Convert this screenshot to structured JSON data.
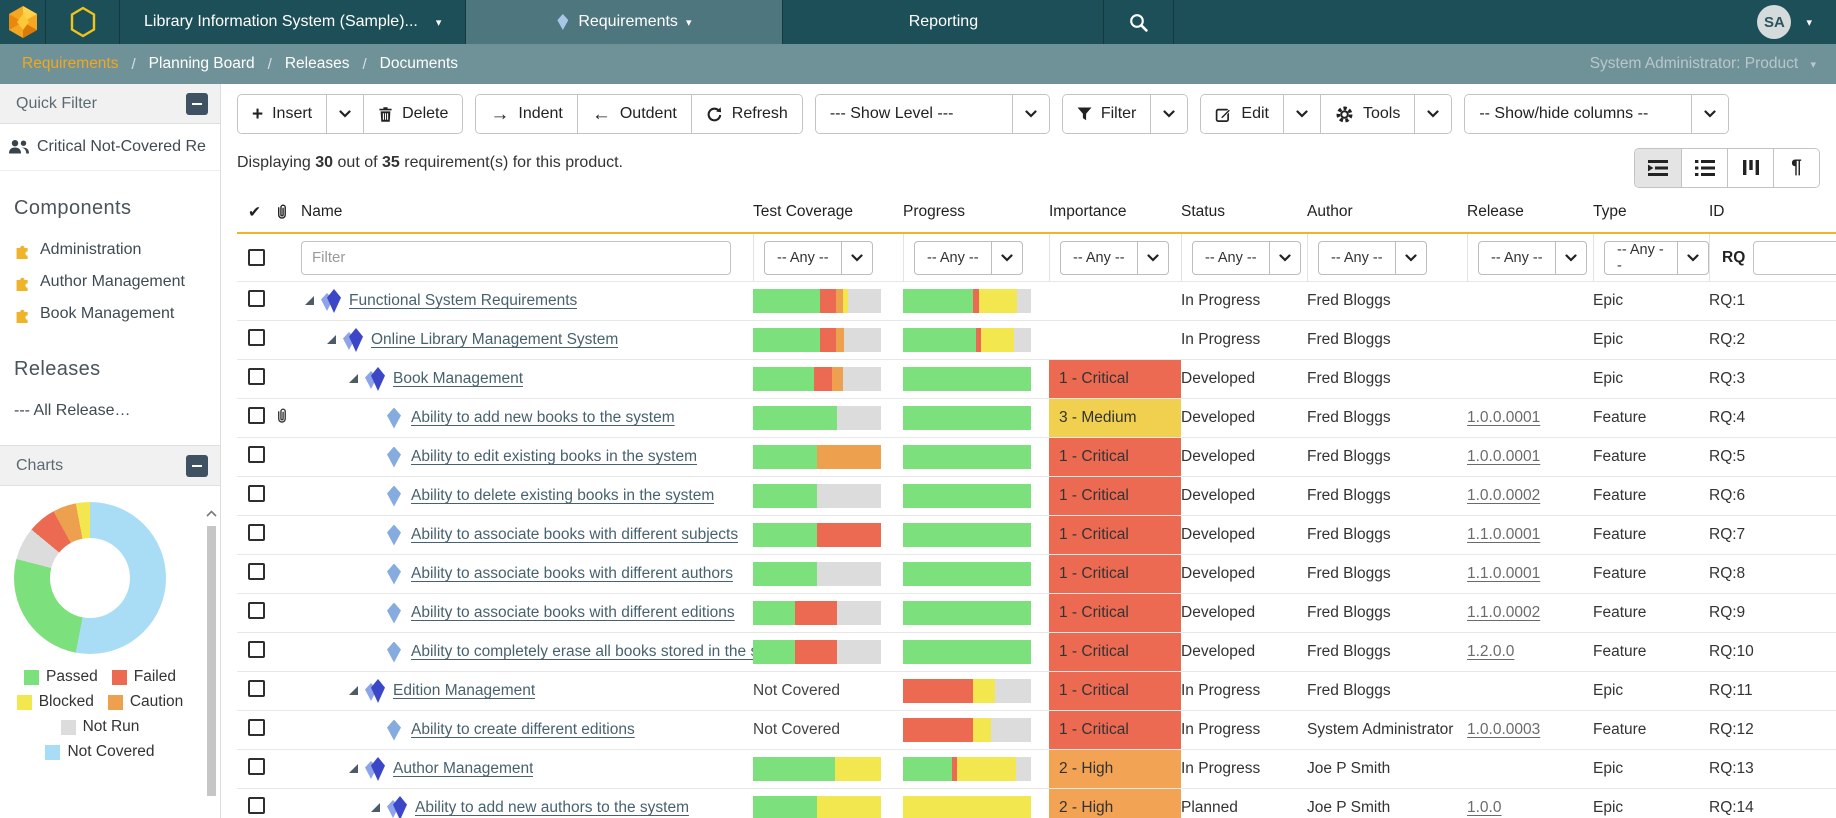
{
  "navbar": {
    "product_menu": "Library Information System (Sample)...",
    "tabs": {
      "requirements": "Requirements",
      "reporting": "Reporting"
    },
    "avatar": "SA"
  },
  "breadcrumb": {
    "items": [
      {
        "label": "Requirements",
        "active": true
      },
      {
        "label": "Planning Board",
        "active": false
      },
      {
        "label": "Releases",
        "active": false
      },
      {
        "label": "Documents",
        "active": false
      }
    ],
    "right": "System Administrator: Product"
  },
  "sidebar": {
    "quick_filter": {
      "title": "Quick Filter",
      "items": [
        "Critical Not-Covered Re"
      ]
    },
    "components": {
      "title": "Components",
      "items": [
        "Administration",
        "Author Management",
        "Book Management"
      ]
    },
    "releases": {
      "title": "Releases",
      "items": [
        "--- All Release…"
      ]
    },
    "charts": {
      "title": "Charts"
    }
  },
  "toolbar": {
    "insert": "Insert",
    "delete": "Delete",
    "indent": "Indent",
    "outdent": "Outdent",
    "refresh": "Refresh",
    "show_level": "--- Show Level ---",
    "filter": "Filter",
    "edit": "Edit",
    "tools": "Tools",
    "columns": "-- Show/hide columns --"
  },
  "summary": {
    "p1": "Displaying",
    "count": "30",
    "p2": "out of",
    "total": "35",
    "p3": "requirement(s) for this product."
  },
  "table": {
    "headers": {
      "name": "Name",
      "coverage": "Test Coverage",
      "progress": "Progress",
      "importance": "Importance",
      "status": "Status",
      "author": "Author",
      "release": "Release",
      "type": "Type",
      "id": "ID"
    },
    "filter": {
      "placeholder": "Filter",
      "any": "-- Any --",
      "id_prefix": "RQ"
    },
    "rows": [
      {
        "indent": 0,
        "expander": true,
        "icon": "epic",
        "attach": false,
        "name": "Functional System Requirements",
        "coverage": [
          [
            "p",
            52
          ],
          [
            "f",
            13
          ],
          [
            "c",
            5
          ],
          [
            "b",
            4
          ],
          [
            "n",
            26
          ]
        ],
        "progress": [
          [
            "p",
            55
          ],
          [
            "f",
            4
          ],
          [
            "b",
            30
          ],
          [
            "n",
            11
          ]
        ],
        "importance": null,
        "status": "In Progress",
        "author": "Fred Bloggs",
        "release": "",
        "type": "Epic",
        "id": "RQ:1"
      },
      {
        "indent": 1,
        "expander": true,
        "icon": "epic",
        "attach": false,
        "name": "Online Library Management System",
        "coverage": [
          [
            "p",
            52
          ],
          [
            "f",
            13
          ],
          [
            "c",
            6
          ],
          [
            "n",
            29
          ]
        ],
        "progress": [
          [
            "p",
            57
          ],
          [
            "f",
            4
          ],
          [
            "b",
            26
          ],
          [
            "n",
            13
          ]
        ],
        "importance": null,
        "status": "In Progress",
        "author": "Fred Bloggs",
        "release": "",
        "type": "Epic",
        "id": "RQ:2"
      },
      {
        "indent": 2,
        "expander": true,
        "icon": "epic",
        "attach": false,
        "name": "Book Management",
        "coverage": [
          [
            "p",
            48
          ],
          [
            "f",
            14
          ],
          [
            "c",
            8
          ],
          [
            "n",
            30
          ]
        ],
        "progress": [
          [
            "p",
            100
          ]
        ],
        "importance": {
          "label": "1 - Critical",
          "level": "critical"
        },
        "status": "Developed",
        "author": "Fred Bloggs",
        "release": "",
        "type": "Epic",
        "id": "RQ:3"
      },
      {
        "indent": 3,
        "expander": false,
        "icon": "feature",
        "attach": true,
        "name": "Ability to add new books to the system",
        "coverage": [
          [
            "p",
            66
          ],
          [
            "n",
            34
          ]
        ],
        "progress": [
          [
            "p",
            100
          ]
        ],
        "importance": {
          "label": "3 - Medium",
          "level": "medium"
        },
        "status": "Developed",
        "author": "Fred Bloggs",
        "release": "1.0.0.0001",
        "type": "Feature",
        "id": "RQ:4"
      },
      {
        "indent": 3,
        "expander": false,
        "icon": "feature",
        "attach": false,
        "name": "Ability to edit existing books in the system",
        "coverage": [
          [
            "p",
            50
          ],
          [
            "c",
            50
          ]
        ],
        "progress": [
          [
            "p",
            100
          ]
        ],
        "importance": {
          "label": "1 - Critical",
          "level": "critical"
        },
        "status": "Developed",
        "author": "Fred Bloggs",
        "release": "1.0.0.0001",
        "type": "Feature",
        "id": "RQ:5"
      },
      {
        "indent": 3,
        "expander": false,
        "icon": "feature",
        "attach": false,
        "name": "Ability to delete existing books in the system",
        "coverage": [
          [
            "p",
            50
          ],
          [
            "n",
            50
          ]
        ],
        "progress": [
          [
            "p",
            100
          ]
        ],
        "importance": {
          "label": "1 - Critical",
          "level": "critical"
        },
        "status": "Developed",
        "author": "Fred Bloggs",
        "release": "1.0.0.0002",
        "type": "Feature",
        "id": "RQ:6"
      },
      {
        "indent": 3,
        "expander": false,
        "icon": "feature",
        "attach": false,
        "name": "Ability to associate books with different subjects",
        "coverage": [
          [
            "p",
            50
          ],
          [
            "f",
            50
          ]
        ],
        "progress": [
          [
            "p",
            100
          ]
        ],
        "importance": {
          "label": "1 - Critical",
          "level": "critical"
        },
        "status": "Developed",
        "author": "Fred Bloggs",
        "release": "1.1.0.0001",
        "type": "Feature",
        "id": "RQ:7"
      },
      {
        "indent": 3,
        "expander": false,
        "icon": "feature",
        "attach": false,
        "name": "Ability to associate books with different authors",
        "coverage": [
          [
            "p",
            50
          ],
          [
            "n",
            50
          ]
        ],
        "progress": [
          [
            "p",
            100
          ]
        ],
        "importance": {
          "label": "1 - Critical",
          "level": "critical"
        },
        "status": "Developed",
        "author": "Fred Bloggs",
        "release": "1.1.0.0001",
        "type": "Feature",
        "id": "RQ:8"
      },
      {
        "indent": 3,
        "expander": false,
        "icon": "feature",
        "attach": false,
        "name": "Ability to associate books with different editions",
        "coverage": [
          [
            "p",
            33
          ],
          [
            "f",
            33
          ],
          [
            "n",
            34
          ]
        ],
        "progress": [
          [
            "p",
            100
          ]
        ],
        "importance": {
          "label": "1 - Critical",
          "level": "critical"
        },
        "status": "Developed",
        "author": "Fred Bloggs",
        "release": "1.1.0.0002",
        "type": "Feature",
        "id": "RQ:9"
      },
      {
        "indent": 3,
        "expander": false,
        "icon": "feature",
        "attach": false,
        "name": "Ability to completely erase all books stored in the sy",
        "coverage": [
          [
            "p",
            33
          ],
          [
            "f",
            33
          ],
          [
            "n",
            34
          ]
        ],
        "progress": [
          [
            "p",
            100
          ]
        ],
        "importance": {
          "label": "1 - Critical",
          "level": "critical"
        },
        "status": "Developed",
        "author": "Fred Bloggs",
        "release": "1.2.0.0",
        "type": "Feature",
        "id": "RQ:10"
      },
      {
        "indent": 2,
        "expander": true,
        "icon": "epic",
        "attach": false,
        "name": "Edition Management",
        "coverage": "Not Covered",
        "progress": [
          [
            "f",
            55
          ],
          [
            "b",
            17
          ],
          [
            "n",
            28
          ]
        ],
        "importance": {
          "label": "1 - Critical",
          "level": "critical"
        },
        "status": "In Progress",
        "author": "Fred Bloggs",
        "release": "",
        "type": "Epic",
        "id": "RQ:11"
      },
      {
        "indent": 3,
        "expander": false,
        "icon": "feature",
        "attach": false,
        "name": "Ability to create different editions",
        "coverage": "Not Covered",
        "progress": [
          [
            "f",
            55
          ],
          [
            "b",
            14
          ],
          [
            "n",
            31
          ]
        ],
        "importance": {
          "label": "1 - Critical",
          "level": "critical"
        },
        "status": "In Progress",
        "author": "System Administrator",
        "release": "1.0.0.0003",
        "type": "Feature",
        "id": "RQ:12"
      },
      {
        "indent": 2,
        "expander": true,
        "icon": "epic",
        "attach": false,
        "name": "Author Management",
        "coverage": [
          [
            "p",
            64
          ],
          [
            "b",
            36
          ]
        ],
        "progress": [
          [
            "p",
            38
          ],
          [
            "f",
            4
          ],
          [
            "b",
            46
          ],
          [
            "n",
            12
          ]
        ],
        "importance": {
          "label": "2 - High",
          "level": "high"
        },
        "status": "In Progress",
        "author": "Joe P Smith",
        "release": "",
        "type": "Epic",
        "id": "RQ:13"
      },
      {
        "indent": 3,
        "expander": true,
        "icon": "epic",
        "attach": false,
        "name": "Ability to add new authors to the system",
        "coverage": [
          [
            "p",
            50
          ],
          [
            "b",
            50
          ]
        ],
        "progress": [
          [
            "b",
            100
          ]
        ],
        "importance": {
          "label": "2 - High",
          "level": "high"
        },
        "status": "Planned",
        "author": "Joe P Smith",
        "release": "1.0.0",
        "type": "Epic",
        "id": "RQ:14"
      }
    ]
  },
  "chart_data": {
    "type": "pie",
    "donut": true,
    "labels": [
      "Passed",
      "Failed",
      "Blocked",
      "Caution",
      "Not Run",
      "Not Covered"
    ],
    "values": [
      26,
      6,
      3,
      5,
      7,
      53
    ],
    "colors": {
      "Passed": "#7ce07c",
      "Failed": "#ec6a51",
      "Blocked": "#f2e74e",
      "Caution": "#eda14e",
      "Not Run": "#dcdcdc",
      "Not Covered": "#a9ddf5"
    },
    "draw_order": [
      "Not Covered",
      "Passed",
      "Not Run",
      "Failed",
      "Caution",
      "Blocked"
    ],
    "legend_position": "bottom"
  }
}
